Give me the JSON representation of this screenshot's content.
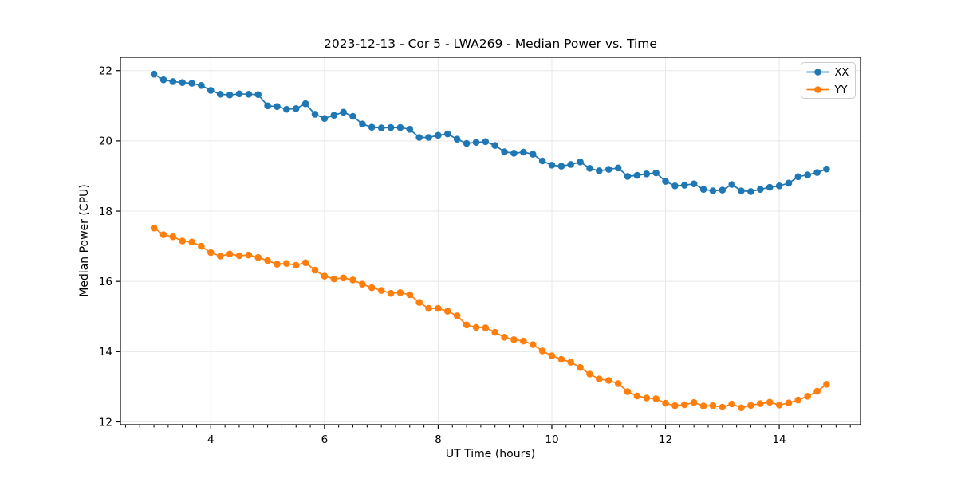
{
  "figure": {
    "background": "#ffffff"
  },
  "chart_data": {
    "type": "line",
    "title": "2023-12-13 - Cor 5 - LWA269 - Median Power vs. Time",
    "xlabel": "UT Time (hours)",
    "ylabel": "Median Power (CPU)",
    "xlim": [
      2.41,
      15.43
    ],
    "ylim": [
      11.92,
      22.38
    ],
    "x_ticks": [
      4,
      6,
      8,
      10,
      12,
      14
    ],
    "x_minor_step": 0.25,
    "y_ticks": [
      12,
      14,
      16,
      18,
      20,
      22
    ],
    "grid": true,
    "legend_position": "upper right",
    "colors": {
      "grid": "#e8e8e8",
      "spine": "#000000",
      "legend_border": "#cccccc",
      "series_xx": "#1f77b4",
      "series_yy": "#ff7f0e"
    },
    "x": [
      3.0,
      3.167,
      3.333,
      3.5,
      3.667,
      3.833,
      4.0,
      4.167,
      4.333,
      4.5,
      4.667,
      4.833,
      5.0,
      5.167,
      5.333,
      5.5,
      5.667,
      5.833,
      6.0,
      6.167,
      6.333,
      6.5,
      6.667,
      6.833,
      7.0,
      7.167,
      7.333,
      7.5,
      7.667,
      7.833,
      8.0,
      8.167,
      8.333,
      8.5,
      8.667,
      8.833,
      9.0,
      9.167,
      9.333,
      9.5,
      9.667,
      9.833,
      10.0,
      10.167,
      10.333,
      10.5,
      10.667,
      10.833,
      11.0,
      11.167,
      11.333,
      11.5,
      11.667,
      11.833,
      12.0,
      12.167,
      12.333,
      12.5,
      12.667,
      12.833,
      13.0,
      13.167,
      13.333,
      13.5,
      13.667,
      13.833,
      14.0,
      14.167,
      14.333,
      14.5,
      14.667,
      14.833
    ],
    "series": [
      {
        "name": "XX",
        "color": "#1f77b4",
        "values": [
          21.9,
          21.74,
          21.69,
          21.66,
          21.64,
          21.58,
          21.44,
          21.33,
          21.31,
          21.34,
          21.33,
          21.32,
          21.0,
          20.98,
          20.9,
          20.92,
          21.06,
          20.76,
          20.64,
          20.73,
          20.82,
          20.7,
          20.48,
          20.39,
          20.37,
          20.38,
          20.38,
          20.33,
          20.1,
          20.1,
          20.16,
          20.2,
          20.05,
          19.93,
          19.96,
          19.98,
          19.87,
          19.69,
          19.65,
          19.68,
          19.62,
          19.43,
          19.31,
          19.28,
          19.33,
          19.4,
          19.22,
          19.15,
          19.19,
          19.23,
          18.99,
          19.02,
          19.06,
          19.09,
          18.85,
          18.72,
          18.74,
          18.78,
          18.62,
          18.58,
          18.6,
          18.76,
          18.58,
          18.56,
          18.62,
          18.68,
          18.72,
          18.8,
          18.98,
          19.03,
          19.1,
          19.2
        ]
      },
      {
        "name": "YY",
        "color": "#ff7f0e",
        "values": [
          17.52,
          17.33,
          17.27,
          17.15,
          17.12,
          17.0,
          16.82,
          16.72,
          16.78,
          16.73,
          16.75,
          16.68,
          16.59,
          16.49,
          16.51,
          16.46,
          16.53,
          16.32,
          16.15,
          16.07,
          16.1,
          16.04,
          15.92,
          15.82,
          15.74,
          15.66,
          15.68,
          15.62,
          15.4,
          15.23,
          15.23,
          15.15,
          15.02,
          14.76,
          14.69,
          14.68,
          14.55,
          14.41,
          14.34,
          14.3,
          14.2,
          14.02,
          13.88,
          13.78,
          13.7,
          13.55,
          13.36,
          13.22,
          13.18,
          13.09,
          12.86,
          12.74,
          12.68,
          12.66,
          12.53,
          12.46,
          12.49,
          12.55,
          12.45,
          12.46,
          12.42,
          12.51,
          12.4,
          12.47,
          12.52,
          12.56,
          12.48,
          12.54,
          12.62,
          12.73,
          12.87,
          13.07
        ]
      }
    ]
  }
}
